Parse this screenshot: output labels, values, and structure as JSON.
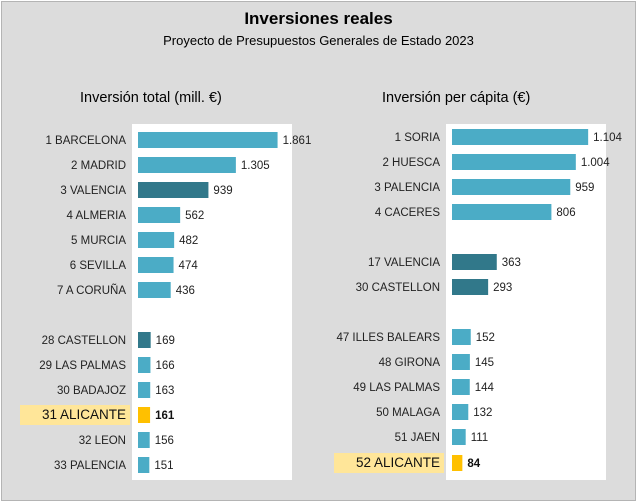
{
  "title": "Inversiones reales",
  "subtitle": "Proyecto de Presupuestos Generales de Estado 2023",
  "colors": {
    "normal": "#4bacc6",
    "dark": "#31788a",
    "highlight": "#ffc000",
    "highlight_label_bg": "#ffe699"
  },
  "chart_data": [
    {
      "type": "bar",
      "orientation": "horizontal",
      "title": "Inversión total (mill. €)",
      "xlim": [
        0,
        2000
      ],
      "categories": [
        "1 BARCELONA",
        "2 MADRID",
        "3 VALENCIA",
        "4 ALMERIA",
        "5 MURCIA",
        "6 SEVILLA",
        "7 A CORUÑA",
        "28 CASTELLON",
        "29 LAS PALMAS",
        "30 BADAJOZ",
        "31 ALICANTE",
        "32 LEON",
        "33 PALENCIA"
      ],
      "values": [
        1861,
        1305,
        939,
        562,
        482,
        474,
        436,
        169,
        166,
        163,
        161,
        156,
        151
      ],
      "value_labels": [
        "1.861",
        "1.305",
        "939",
        "562",
        "482",
        "474",
        "436",
        "169",
        "166",
        "163",
        "161",
        "156",
        "151"
      ],
      "bar_styles": [
        "normal",
        "normal",
        "dark",
        "normal",
        "normal",
        "normal",
        "normal",
        "dark",
        "normal",
        "normal",
        "highlight",
        "normal",
        "normal"
      ]
    },
    {
      "type": "bar",
      "orientation": "horizontal",
      "title": "Inversión per cápita (€)",
      "xlim": [
        0,
        1200
      ],
      "categories": [
        "1 SORIA",
        "2 HUESCA",
        "3 PALENCIA",
        "4 CACERES",
        "17 VALENCIA",
        "30 CASTELLON",
        "47 ILLES BALEARS",
        "48 GIRONA",
        "49 LAS PALMAS",
        "50 MALAGA",
        "51 JAEN",
        "52 ALICANTE"
      ],
      "values": [
        1104,
        1004,
        959,
        806,
        363,
        293,
        152,
        145,
        144,
        132,
        111,
        84
      ],
      "value_labels": [
        "1.104",
        "1.004",
        "959",
        "806",
        "363",
        "293",
        "152",
        "145",
        "144",
        "132",
        "111",
        "84"
      ],
      "bar_styles": [
        "normal",
        "normal",
        "normal",
        "normal",
        "dark",
        "dark",
        "normal",
        "normal",
        "normal",
        "normal",
        "normal",
        "highlight"
      ]
    }
  ]
}
